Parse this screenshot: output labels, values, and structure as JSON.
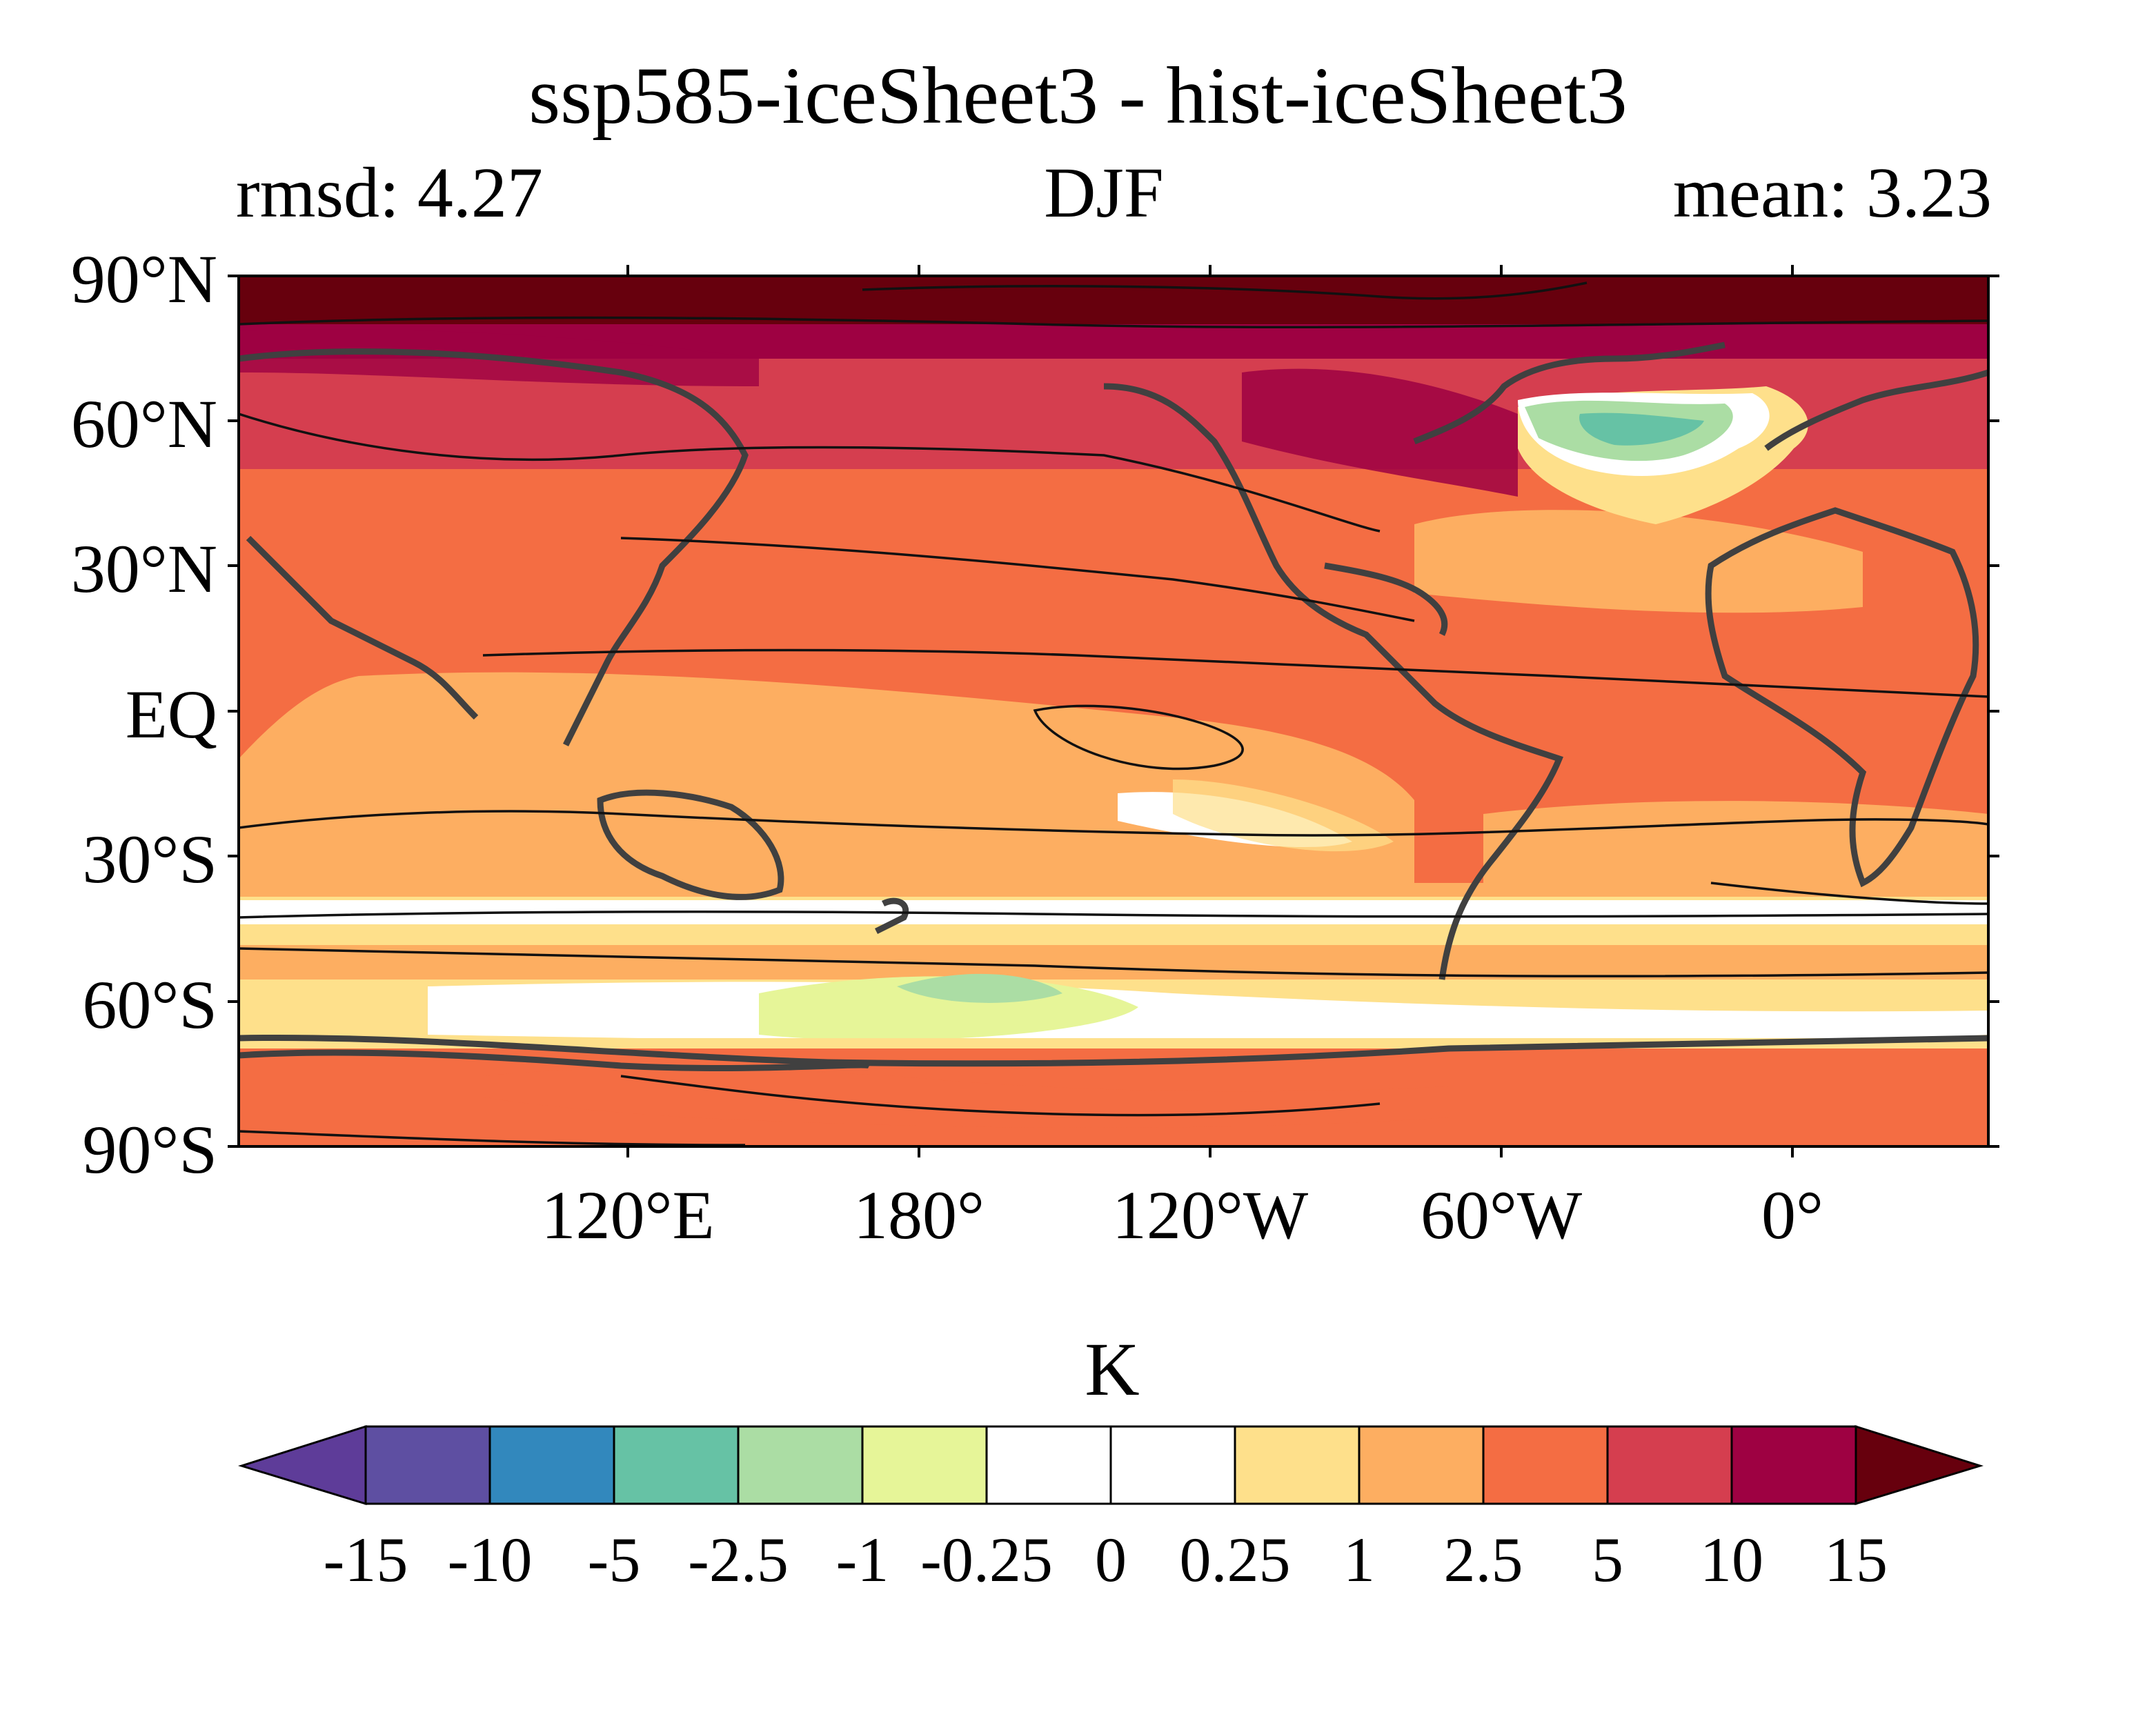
{
  "title": "ssp585-iceSheet3 - hist-iceSheet3",
  "subtitle_left": "rmsd: 4.27",
  "subtitle_center": "DJF",
  "subtitle_right": "mean: 3.23",
  "lat_ticks": [
    "90°N",
    "60°N",
    "30°N",
    "EQ",
    "30°S",
    "60°S",
    "90°S"
  ],
  "lon_ticks": [
    "120°E",
    "180°",
    "120°W",
    "60°W",
    "0°"
  ],
  "units": "K",
  "colorbar": {
    "levels": [
      "-15",
      "-10",
      "-5",
      "-2.5",
      "-1",
      "-0.25",
      "0",
      "0.25",
      "1",
      "2.5",
      "5",
      "10",
      "15"
    ],
    "colors": [
      "#5e3c99",
      "#5e4fa2",
      "#3288bd",
      "#66c2a5",
      "#abdda4",
      "#e6f598",
      "#ffffff",
      "#ffffff",
      "#fee08b",
      "#fdae61",
      "#f46d43",
      "#d53e4f",
      "#9e0142",
      "#67000d"
    ]
  },
  "chart_data": {
    "type": "heatmap",
    "title": "ssp585-iceSheet3 - hist-iceSheet3",
    "season": "DJF",
    "rmsd": 4.27,
    "mean": 3.23,
    "units": "K",
    "lat_range": [
      -90,
      90
    ],
    "lon_range": [
      60,
      420
    ],
    "levels": [
      -15,
      -10,
      -5,
      -2.5,
      -1,
      -0.25,
      0,
      0.25,
      1,
      2.5,
      5,
      10,
      15
    ],
    "zonal_bands": [
      {
        "lat": [
          80,
          90
        ],
        "value_range": "> 15"
      },
      {
        "lat": [
          60,
          80
        ],
        "value_range": "5 to 15"
      },
      {
        "lat": [
          35,
          60
        ],
        "value_range": "2.5 to 10"
      },
      {
        "lat": [
          -20,
          35
        ],
        "value_range": "1 to 5"
      },
      {
        "lat": [
          -45,
          -20
        ],
        "value_range": "0.25 to 2.5"
      },
      {
        "lat": [
          -65,
          -45
        ],
        "value_range": "-1 to 1"
      },
      {
        "lat": [
          -90,
          -65
        ],
        "value_range": "1 to 5"
      }
    ],
    "notable_features": [
      {
        "region": "North Atlantic",
        "lat": [
          45,
          62
        ],
        "lon": [
          -55,
          -10
        ],
        "value_range": "-5 to -0.25"
      }
    ]
  }
}
